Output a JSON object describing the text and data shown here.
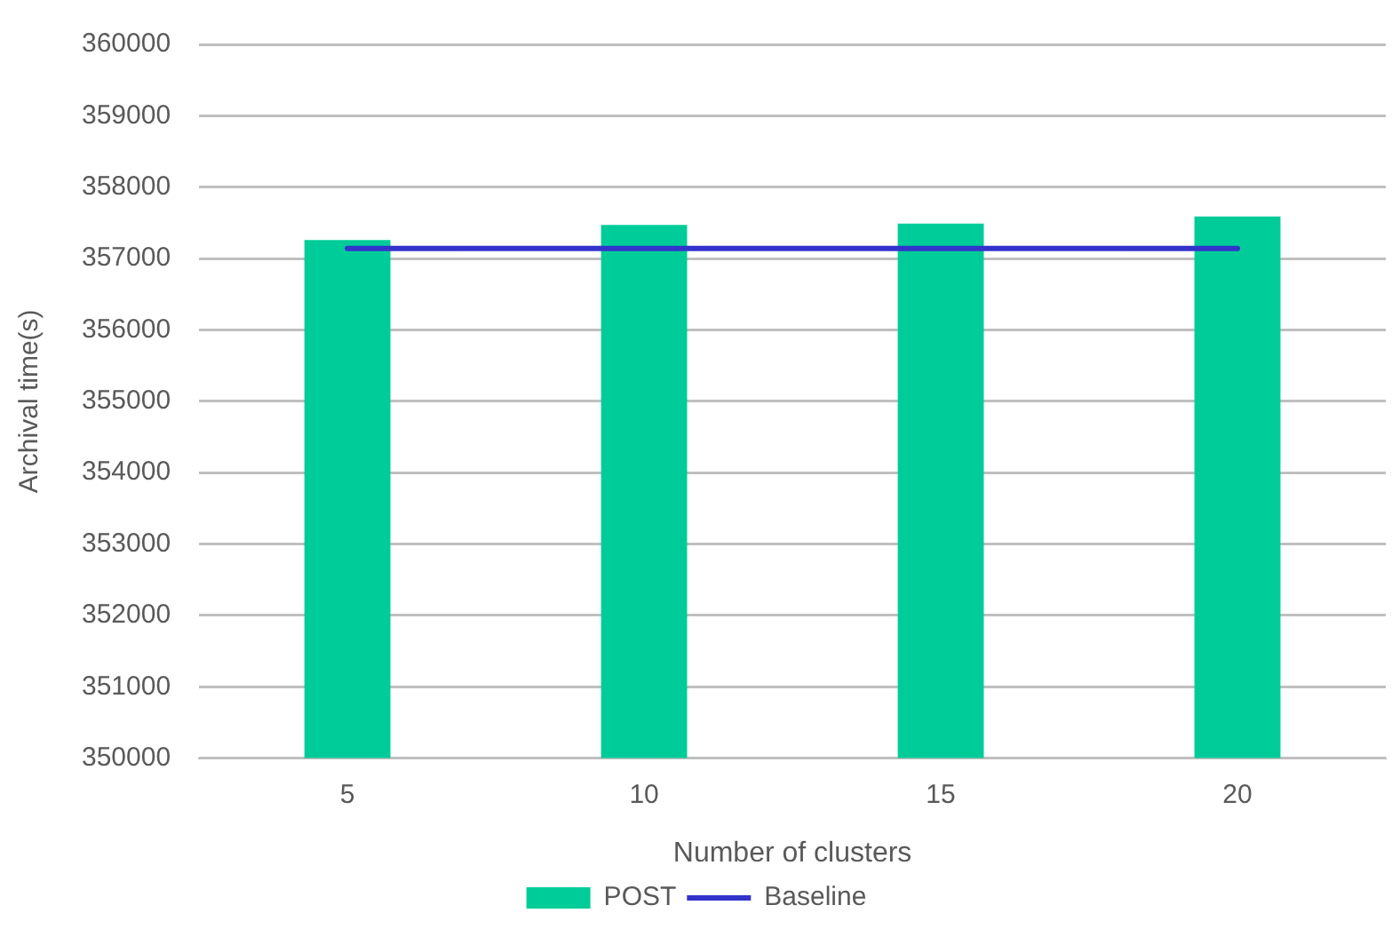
{
  "chart_data": {
    "type": "bar",
    "xlabel": "Number of clusters",
    "ylabel": "Archival time(s)",
    "categories": [
      "5",
      "10",
      "15",
      "20"
    ],
    "series": [
      {
        "name": "POST",
        "color": "#00cc99",
        "values": [
          357260,
          357470,
          357490,
          357590
        ]
      },
      {
        "name": "Baseline",
        "type": "line",
        "color": "#3333cc",
        "values": [
          357140,
          357140,
          357140,
          357140
        ]
      }
    ],
    "ylim": [
      350000,
      360000
    ],
    "yticks": [
      350000,
      351000,
      352000,
      353000,
      354000,
      355000,
      356000,
      357000,
      358000,
      359000,
      360000
    ],
    "grid": "y",
    "legend": "bottom"
  }
}
